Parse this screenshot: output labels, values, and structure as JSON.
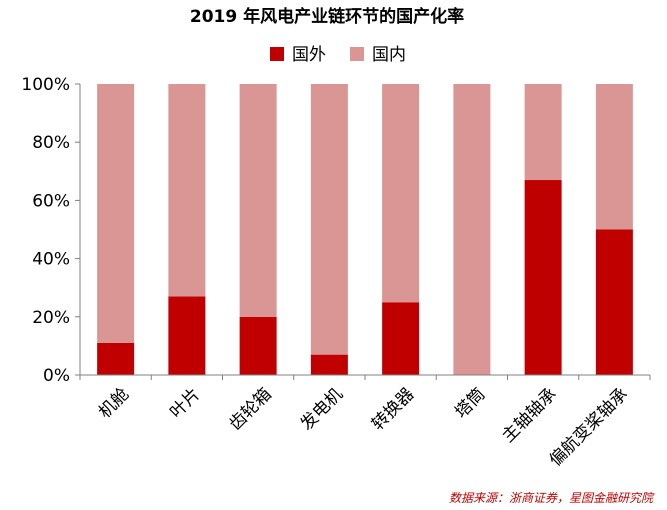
{
  "chart_data": {
    "type": "bar",
    "stacked": true,
    "title": "2019 年风电产业链环节的国产化率",
    "categories": [
      "机舱",
      "叶片",
      "齿轮箱",
      "发电机",
      "转换器",
      "塔筒",
      "主轴轴承",
      "偏航变桨轴承"
    ],
    "series": [
      {
        "name": "国外",
        "values": [
          11,
          27,
          20,
          7,
          25,
          0,
          67,
          50
        ]
      },
      {
        "name": "国内",
        "values": [
          89,
          73,
          80,
          93,
          75,
          100,
          33,
          50
        ]
      }
    ],
    "ylim": [
      0,
      100
    ],
    "yticks": [
      "0%",
      "20%",
      "40%",
      "60%",
      "80%",
      "100%"
    ],
    "legend_position": "top-center",
    "grid": false,
    "source": "数据来源：浙商证券，星图金融研究院",
    "colors": {
      "国外": "#c00000",
      "国内": "#da9694",
      "source": "#c00000",
      "axis": "#808080"
    }
  }
}
